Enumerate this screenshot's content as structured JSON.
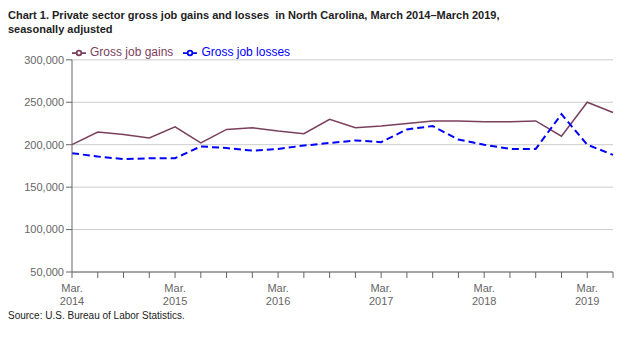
{
  "chart_data": {
    "type": "line",
    "title": "Chart 1. Private sector gross job gains and losses  in North Carolina, March 2014–March 2019,\nseasonally adjusted",
    "source": "Source: U.S. Bureau of Labor Statistics.",
    "categories": [
      "Mar.\n2014",
      null,
      null,
      null,
      "Mar.\n2015",
      null,
      null,
      null,
      "Mar.\n2016",
      null,
      null,
      null,
      "Mar.\n2017",
      null,
      null,
      null,
      "Mar.\n2018",
      null,
      null,
      null,
      "Mar.\n2019",
      null
    ],
    "series": [
      {
        "name": "Gross job gains",
        "color": "#7B3F5E",
        "line_style": "solid",
        "values": [
          200000,
          215000,
          212000,
          208000,
          221000,
          202000,
          218000,
          220000,
          216000,
          213000,
          230000,
          220000,
          222000,
          225000,
          228000,
          228000,
          227000,
          227000,
          228000,
          210000,
          250000,
          238000
        ]
      },
      {
        "name": "Gross job losses",
        "color": "#0000FF",
        "line_style": "dashed",
        "values": [
          190000,
          186000,
          183000,
          184000,
          184000,
          198000,
          196000,
          193000,
          195000,
          199000,
          202000,
          205000,
          203000,
          218000,
          222000,
          206000,
          200000,
          195000,
          195000,
          236000,
          200000,
          188000
        ]
      }
    ],
    "ylim": [
      50000,
      300000
    ],
    "yticks": [
      {
        "value": 50000,
        "label": "50,000"
      },
      {
        "value": 100000,
        "label": "100,000"
      },
      {
        "value": 150000,
        "label": "150,000"
      },
      {
        "value": 200000,
        "label": "200,000"
      },
      {
        "value": 250000,
        "label": "250,000"
      },
      {
        "value": 300000,
        "label": "300,000"
      }
    ],
    "grid": true,
    "legend": "upper left"
  }
}
